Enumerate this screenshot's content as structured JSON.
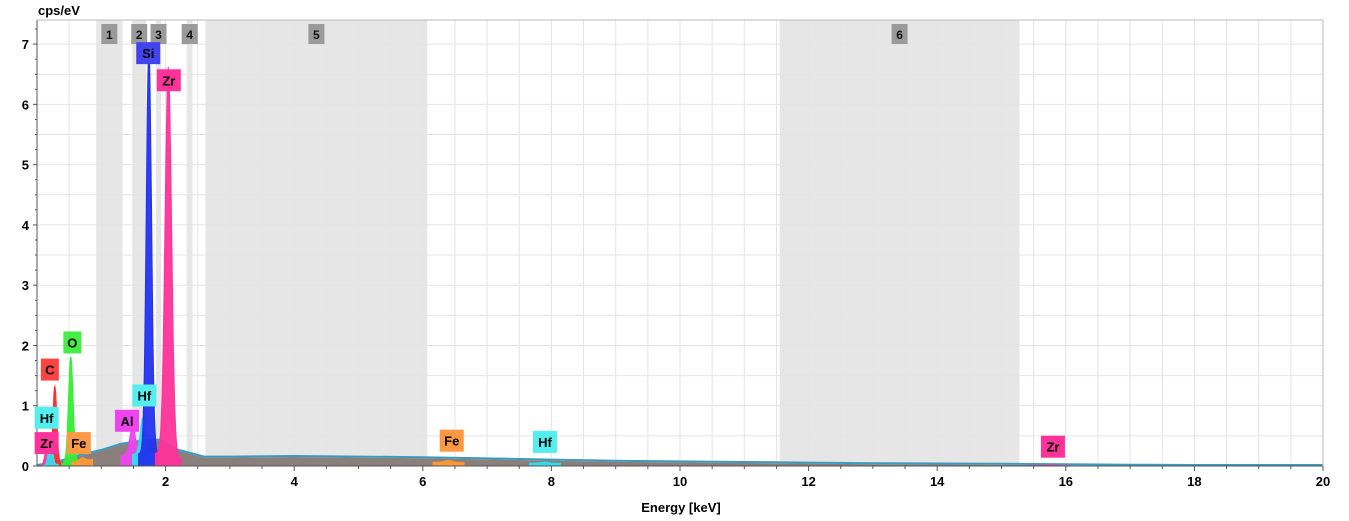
{
  "chart_data": {
    "type": "area",
    "ylabel": "cps/eV",
    "xlabel": "Energy [keV]",
    "xlim": [
      0,
      20
    ],
    "ylim": [
      0,
      7.4
    ],
    "grid": true,
    "x_ticks": [
      2,
      4,
      6,
      8,
      10,
      12,
      14,
      16,
      18,
      20
    ],
    "y_ticks": [
      0,
      1,
      2,
      3,
      4,
      5,
      6,
      7
    ],
    "regions": [
      {
        "label": "1",
        "start": 0.92,
        "end": 1.33
      },
      {
        "label": "2",
        "start": 1.48,
        "end": 1.7
      },
      {
        "label": "3",
        "start": 1.85,
        "end": 1.93
      },
      {
        "label": "4",
        "start": 2.33,
        "end": 2.42
      },
      {
        "label": "5",
        "start": 2.62,
        "end": 6.07
      },
      {
        "label": "6",
        "start": 11.55,
        "end": 15.28
      }
    ],
    "peaks": [
      {
        "element": "C",
        "energy": 0.277,
        "height": 1.3,
        "width": 0.03,
        "color": "#ff2a2a"
      },
      {
        "element": "Zr",
        "energy": 0.151,
        "height": 0.28,
        "width": 0.03,
        "color": "#ff3399"
      },
      {
        "element": "Hf",
        "energy": 0.21,
        "height": 0.45,
        "width": 0.03,
        "color": "#33ddee"
      },
      {
        "element": "O",
        "energy": 0.525,
        "height": 1.75,
        "width": 0.035,
        "color": "#33ee33"
      },
      {
        "element": "Fe",
        "energy": 0.705,
        "height": 0.05,
        "width": 0.04,
        "color": "#ff9933"
      },
      {
        "element": "Al",
        "energy": 1.487,
        "height": 0.45,
        "width": 0.045,
        "color": "#ee44ee"
      },
      {
        "element": "Hf",
        "energy": 1.645,
        "height": 0.6,
        "width": 0.04,
        "color": "#33ddee"
      },
      {
        "element": "Si",
        "energy": 1.74,
        "height": 6.8,
        "width": 0.04,
        "color": "#2233ee"
      },
      {
        "element": "Zr",
        "energy": 2.042,
        "height": 6.45,
        "width": 0.05,
        "color": "#ff3399"
      },
      {
        "element": "Fe",
        "energy": 6.4,
        "height": 0.03,
        "width": 0.06,
        "color": "#ff9933"
      },
      {
        "element": "Hf",
        "energy": 7.9,
        "height": 0.02,
        "width": 0.06,
        "color": "#33ddee"
      },
      {
        "element": "Zr",
        "energy": 15.77,
        "height": 0.01,
        "width": 0.08,
        "color": "#ff3399"
      }
    ],
    "labels": [
      {
        "text": "Si",
        "energy": 1.73,
        "y": 6.85,
        "color": "#4444ee"
      },
      {
        "text": "Zr",
        "energy": 2.05,
        "y": 6.4,
        "color": "#ff3399"
      },
      {
        "text": "C",
        "energy": 0.2,
        "y": 1.6,
        "color": "#ff4444"
      },
      {
        "text": "O",
        "energy": 0.55,
        "y": 2.05,
        "color": "#44ee44"
      },
      {
        "text": "Hf",
        "energy": 0.15,
        "y": 0.8,
        "color": "#55eeee"
      },
      {
        "text": "Zr",
        "energy": 0.15,
        "y": 0.38,
        "color": "#ff3399"
      },
      {
        "text": "Fe",
        "energy": 0.65,
        "y": 0.38,
        "color": "#ff9944"
      },
      {
        "text": "Hf",
        "energy": 1.67,
        "y": 1.17,
        "color": "#55eeee"
      },
      {
        "text": "Al",
        "energy": 1.4,
        "y": 0.75,
        "color": "#ee44ee"
      },
      {
        "text": "Fe",
        "energy": 6.45,
        "y": 0.42,
        "color": "#ff9944"
      },
      {
        "text": "Hf",
        "energy": 7.9,
        "y": 0.4,
        "color": "#55eeee"
      },
      {
        "text": "Zr",
        "energy": 15.8,
        "y": 0.32,
        "color": "#ff3399"
      }
    ],
    "background": {
      "color": "#8a7f7a",
      "outline_color": "#3a9bbf",
      "points": [
        [
          0,
          0.0
        ],
        [
          0.3,
          0.05
        ],
        [
          0.6,
          0.15
        ],
        [
          1.0,
          0.25
        ],
        [
          1.3,
          0.35
        ],
        [
          1.6,
          0.4
        ],
        [
          1.9,
          0.42
        ],
        [
          2.2,
          0.25
        ],
        [
          2.6,
          0.14
        ],
        [
          3.0,
          0.14
        ],
        [
          4.0,
          0.15
        ],
        [
          5.0,
          0.14
        ],
        [
          6.0,
          0.13
        ],
        [
          7.0,
          0.11
        ],
        [
          8.0,
          0.09
        ],
        [
          9.0,
          0.07
        ],
        [
          10.0,
          0.06
        ],
        [
          11.0,
          0.05
        ],
        [
          12.0,
          0.04
        ],
        [
          13.0,
          0.03
        ],
        [
          14.0,
          0.025
        ],
        [
          15.0,
          0.02
        ],
        [
          16.0,
          0.012
        ],
        [
          17.0,
          0.005
        ],
        [
          18.0,
          0.0
        ],
        [
          20.0,
          0.0
        ]
      ]
    },
    "colors": {
      "region_fill": "#e6e6e6",
      "region_tag": "#9a9a9a",
      "grid": "#e4e4e4",
      "axis": "#555555"
    }
  }
}
